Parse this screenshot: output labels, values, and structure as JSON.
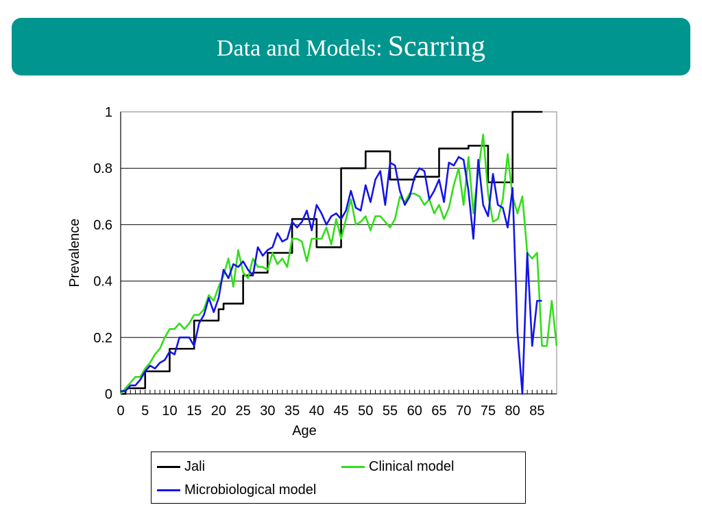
{
  "slide": {
    "title": "Data and Models:",
    "title_emphasis": "Scarring",
    "title_bar_color": "#00958f"
  },
  "chart_data": {
    "type": "line",
    "title": "",
    "xlabel": "Age",
    "ylabel": "Prevalence",
    "xlim": [
      0,
      89
    ],
    "ylim": [
      0,
      1
    ],
    "xticks": [
      "0",
      "5",
      "10",
      "15",
      "20",
      "25",
      "30",
      "35",
      "40",
      "45",
      "50",
      "55",
      "60",
      "65",
      "70",
      "75",
      "80",
      "85"
    ],
    "yticks": [
      "0",
      "0.2",
      "0.4",
      "0.6",
      "0.8",
      "1"
    ],
    "grid": "horizontal",
    "legend_position": "bottom",
    "series": [
      {
        "name": "Jali",
        "color": "#000000",
        "x": [
          0,
          1,
          2,
          3,
          4,
          5,
          6,
          7,
          8,
          9,
          10,
          11,
          12,
          13,
          14,
          15,
          16,
          17,
          18,
          19,
          20,
          21,
          22,
          23,
          24,
          25,
          26,
          27,
          28,
          29,
          30,
          31,
          32,
          33,
          34,
          35,
          36,
          37,
          38,
          39,
          40,
          41,
          42,
          43,
          44,
          45,
          46,
          47,
          48,
          49,
          50,
          51,
          52,
          53,
          54,
          55,
          56,
          57,
          58,
          59,
          60,
          61,
          62,
          63,
          64,
          65,
          66,
          67,
          68,
          69,
          70,
          71,
          72,
          73,
          74,
          75,
          76,
          77,
          78,
          79,
          80,
          81,
          82,
          83,
          84,
          85,
          86
        ],
        "values": [
          0,
          0.02,
          0.02,
          0.02,
          0.02,
          0.08,
          0.08,
          0.08,
          0.08,
          0.08,
          0.16,
          0.16,
          0.16,
          0.16,
          0.16,
          0.26,
          0.26,
          0.26,
          0.26,
          0.26,
          0.3,
          0.32,
          0.32,
          0.32,
          0.32,
          0.42,
          0.42,
          0.43,
          0.43,
          0.43,
          0.5,
          0.5,
          0.5,
          0.5,
          0.5,
          0.62,
          0.62,
          0.62,
          0.62,
          0.62,
          0.52,
          0.52,
          0.52,
          0.52,
          0.52,
          0.8,
          0.8,
          0.8,
          0.8,
          0.8,
          0.86,
          0.86,
          0.86,
          0.86,
          0.86,
          0.76,
          0.76,
          0.76,
          0.76,
          0.76,
          0.77,
          0.77,
          0.77,
          0.77,
          0.77,
          0.87,
          0.87,
          0.87,
          0.87,
          0.87,
          0.87,
          0.88,
          0.88,
          0.88,
          0.88,
          0.75,
          0.75,
          0.75,
          0.75,
          0.75,
          1,
          1,
          1,
          1,
          1,
          1,
          1
        ]
      },
      {
        "name": "Clinical model",
        "color": "#33dd1a",
        "x": [
          0,
          1,
          2,
          3,
          4,
          5,
          6,
          7,
          8,
          9,
          10,
          11,
          12,
          13,
          14,
          15,
          16,
          17,
          18,
          19,
          20,
          21,
          22,
          23,
          24,
          25,
          26,
          27,
          28,
          29,
          30,
          31,
          32,
          33,
          34,
          35,
          36,
          37,
          38,
          39,
          40,
          41,
          42,
          43,
          44,
          45,
          46,
          47,
          48,
          49,
          50,
          51,
          52,
          53,
          54,
          55,
          56,
          57,
          58,
          59,
          60,
          61,
          62,
          63,
          64,
          65,
          66,
          67,
          68,
          69,
          70,
          71,
          72,
          73,
          74,
          75,
          76,
          77,
          78,
          79,
          80,
          81,
          82,
          83,
          84,
          85,
          86,
          87,
          88,
          89
        ],
        "values": [
          0,
          0.02,
          0.04,
          0.06,
          0.06,
          0.09,
          0.11,
          0.14,
          0.16,
          0.2,
          0.23,
          0.23,
          0.25,
          0.23,
          0.25,
          0.28,
          0.28,
          0.3,
          0.35,
          0.33,
          0.38,
          0.42,
          0.48,
          0.38,
          0.51,
          0.43,
          0.41,
          0.48,
          0.45,
          0.45,
          0.44,
          0.5,
          0.46,
          0.48,
          0.45,
          0.55,
          0.55,
          0.54,
          0.47,
          0.55,
          0.55,
          0.55,
          0.59,
          0.53,
          0.62,
          0.55,
          0.62,
          0.69,
          0.6,
          0.61,
          0.63,
          0.58,
          0.63,
          0.63,
          0.61,
          0.59,
          0.62,
          0.7,
          0.68,
          0.71,
          0.71,
          0.7,
          0.67,
          0.69,
          0.64,
          0.67,
          0.62,
          0.66,
          0.74,
          0.8,
          0.67,
          0.84,
          0.64,
          0.79,
          0.92,
          0.71,
          0.61,
          0.62,
          0.69,
          0.85,
          0.7,
          0.64,
          0.7,
          0.5,
          0.48,
          0.5,
          0.17,
          0.17,
          0.33,
          0.17
        ]
      },
      {
        "name": "Microbiological model",
        "color": "#1414e6",
        "x": [
          0,
          1,
          2,
          3,
          4,
          5,
          6,
          7,
          8,
          9,
          10,
          11,
          12,
          13,
          14,
          15,
          16,
          17,
          18,
          19,
          20,
          21,
          22,
          23,
          24,
          25,
          26,
          27,
          28,
          29,
          30,
          31,
          32,
          33,
          34,
          35,
          36,
          37,
          38,
          39,
          40,
          41,
          42,
          43,
          44,
          45,
          46,
          47,
          48,
          49,
          50,
          51,
          52,
          53,
          54,
          55,
          56,
          57,
          58,
          59,
          60,
          61,
          62,
          63,
          64,
          65,
          66,
          67,
          68,
          69,
          70,
          71,
          72,
          73,
          74,
          75,
          76,
          77,
          78,
          79,
          80,
          81,
          82,
          83,
          84,
          85,
          86
        ],
        "values": [
          0.01,
          0.01,
          0.03,
          0.03,
          0.05,
          0.08,
          0.1,
          0.09,
          0.11,
          0.12,
          0.15,
          0.14,
          0.2,
          0.2,
          0.2,
          0.17,
          0.25,
          0.28,
          0.34,
          0.29,
          0.34,
          0.44,
          0.41,
          0.46,
          0.45,
          0.47,
          0.44,
          0.42,
          0.52,
          0.49,
          0.51,
          0.52,
          0.57,
          0.54,
          0.55,
          0.61,
          0.59,
          0.61,
          0.65,
          0.58,
          0.67,
          0.64,
          0.6,
          0.63,
          0.64,
          0.62,
          0.65,
          0.72,
          0.66,
          0.65,
          0.74,
          0.68,
          0.76,
          0.79,
          0.67,
          0.82,
          0.81,
          0.72,
          0.67,
          0.7,
          0.77,
          0.8,
          0.79,
          0.69,
          0.72,
          0.76,
          0.68,
          0.82,
          0.81,
          0.84,
          0.83,
          0.72,
          0.55,
          0.83,
          0.67,
          0.63,
          0.78,
          0.67,
          0.66,
          0.59,
          0.73,
          0.22,
          0,
          0.5,
          0.17,
          0.33,
          0.33
        ]
      }
    ]
  }
}
